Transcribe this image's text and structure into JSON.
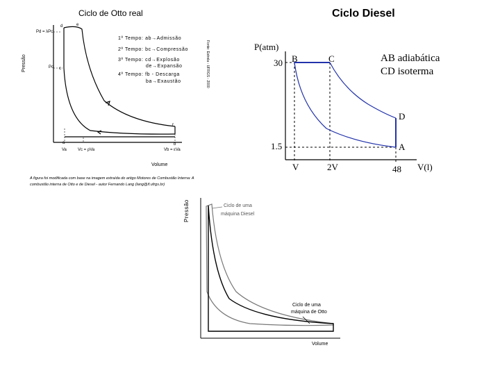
{
  "otto": {
    "title": "Ciclo de Otto real",
    "ylabel": "Pressão",
    "xlabel": "Volume",
    "labels": {
      "pd": "Pd = λPc",
      "pc": "Pc",
      "d": "d",
      "e": "e",
      "f": "f",
      "a": "a",
      "b": "b",
      "c": "c",
      "va": "Va",
      "vc": "Vc = ρVa",
      "vb": "Vb = εVa"
    },
    "strokes": [
      {
        "num": "1º",
        "text": "Tempo:  ab→Admissão"
      },
      {
        "num": "2º",
        "text": "Tempo:  bc→Compressão"
      },
      {
        "num": "3º",
        "text": "Tempo:  cd→Explosão"
      },
      {
        "num": "",
        "text": "de→Expansão"
      },
      {
        "num": "4º",
        "text": "Tempo:  fb - Descarga"
      },
      {
        "num": "",
        "text": "ba→Exaustão"
      }
    ],
    "vertical_credit": "Fonte: Estrela - UFRGS - 2000",
    "caption_line1": "A figura foi modificada com base na imagem extraída do artigo Motores de Combustão Interna: A",
    "caption_line2": "combustão interna de Otto e de Diesel - autor Fernando Lang (lang@if.ufrgs.br)"
  },
  "diesel": {
    "title": "Ciclo Diesel",
    "ylabel": "P(atm)",
    "xlabel": "V(l)",
    "y_ticks": [
      "30",
      "1.5"
    ],
    "x_ticks": [
      "V",
      "2V",
      "48"
    ],
    "points": {
      "B": "B",
      "C": "C",
      "D": "D",
      "A": "A"
    },
    "legend_line1": "AB adiabática",
    "legend_line2": "CD isoterma",
    "line_color": "#2233aa"
  },
  "compare": {
    "ylabel": "Pressão",
    "xlabel": "Volume",
    "diesel_label_1": "Ciclo de uma",
    "diesel_label_2": "máquina Diesel",
    "otto_label_1": "Ciclo de uma",
    "otto_label_2": "máquina de Otto"
  }
}
